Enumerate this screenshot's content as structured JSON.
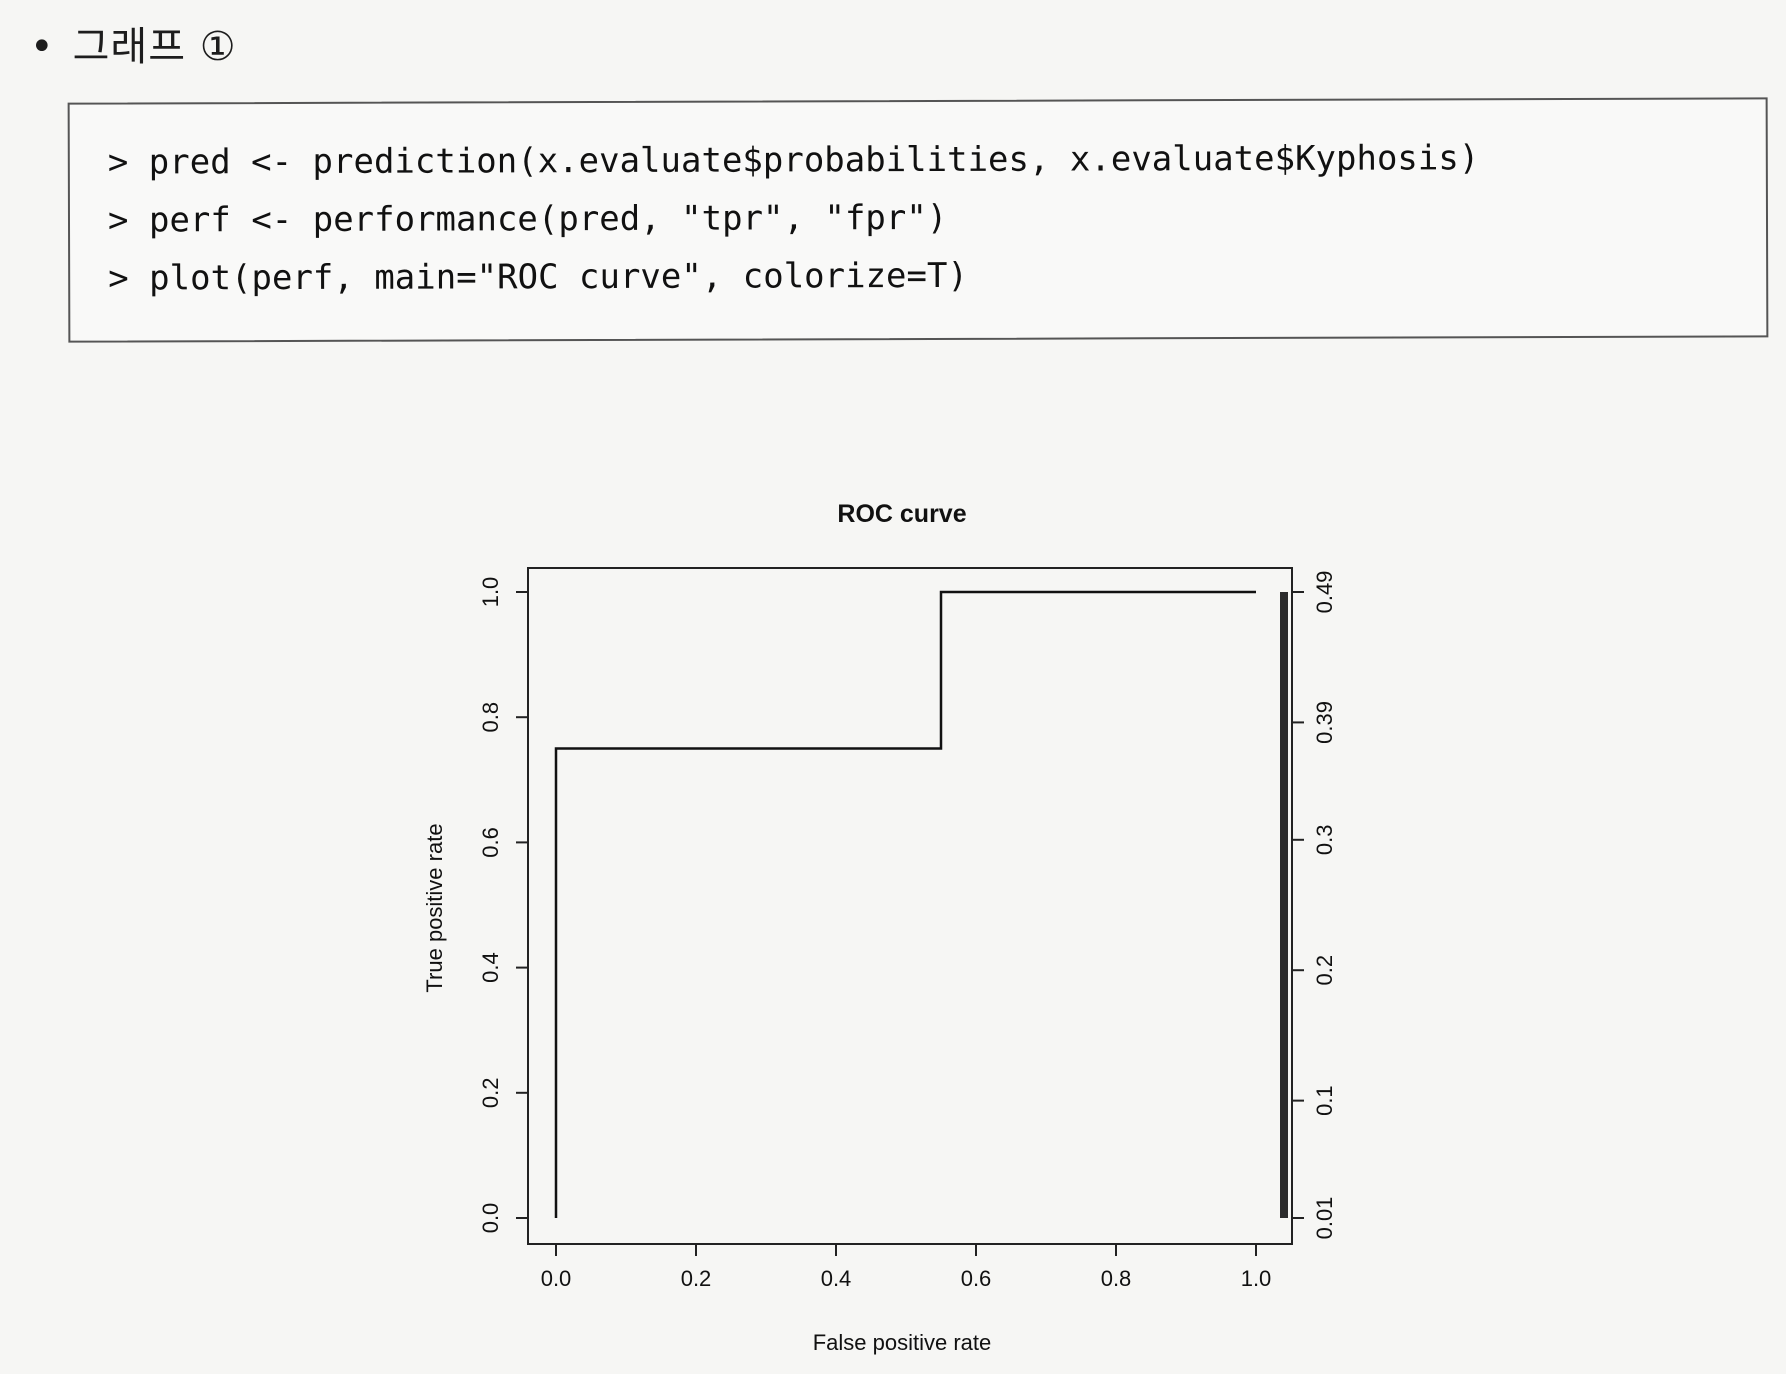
{
  "heading": {
    "bullet": "•",
    "text": "그래프 ①"
  },
  "code": {
    "lines": [
      "> pred <- prediction(x.evaluate$probabilities, x.evaluate$Kyphosis)",
      "> perf <- performance(pred, \"tpr\", \"fpr\")",
      "> plot(perf, main=\"ROC curve\", colorize=T)"
    ]
  },
  "chart_data": {
    "type": "line",
    "title": "ROC curve",
    "xlabel": "False positive rate",
    "ylabel": "True positive rate",
    "xlim": [
      0,
      1
    ],
    "ylim": [
      0,
      1
    ],
    "x_ticks": [
      "0.0",
      "0.2",
      "0.4",
      "0.6",
      "0.8",
      "1.0"
    ],
    "y_ticks": [
      "0.0",
      "0.2",
      "0.4",
      "0.6",
      "0.8",
      "1.0"
    ],
    "series": [
      {
        "x": [
          0.0,
          0.0,
          0.55,
          0.55,
          1.0
        ],
        "y": [
          0.0,
          0.75,
          0.75,
          1.0,
          1.0
        ]
      }
    ],
    "colorbar": {
      "tick_labels": [
        "0.01",
        "0.1",
        "0.2",
        "0.3",
        "0.39",
        "0.49"
      ],
      "tick_values": [
        0.01,
        0.1,
        0.2,
        0.3,
        0.39,
        0.49
      ],
      "range": [
        0.01,
        0.49
      ]
    },
    "grid": false,
    "color": "#111111"
  }
}
